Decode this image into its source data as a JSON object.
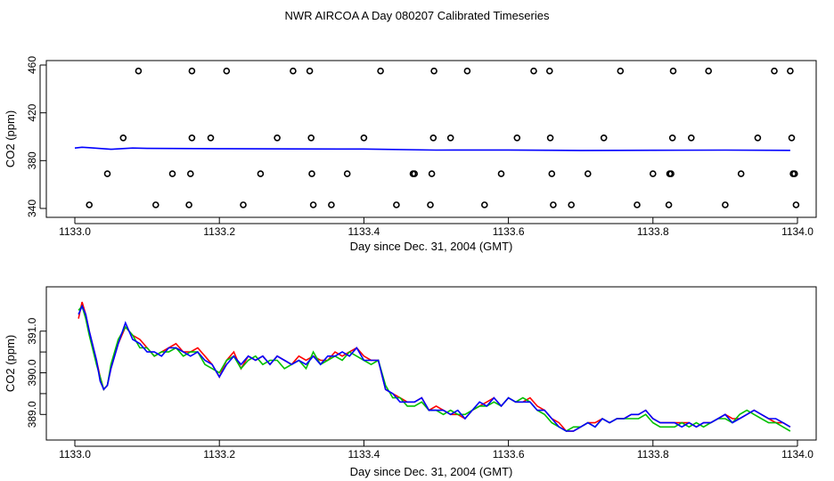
{
  "figure": {
    "title": "NWR AIRCOA A  Day 080207  Calibrated Timeseries"
  },
  "chart_data": [
    {
      "type": "scatter",
      "title": "",
      "xlabel": "Day since Dec. 31, 2004 (GMT)",
      "ylabel": "CO2 (ppm)",
      "xlim": [
        1133.0,
        1134.0
      ],
      "ylim": [
        340,
        460
      ],
      "x_ticks": [
        "1133.0",
        "1133.2",
        "1133.4",
        "1133.6",
        "1133.8",
        "1134.0"
      ],
      "y_ticks": [
        "340",
        "380",
        "420",
        "460"
      ],
      "grid": false,
      "colors": {
        "red": "#ff0000",
        "green": "#00c000",
        "blue": "#0000ff",
        "points": "#000000"
      },
      "points": [
        {
          "x": 1133.02,
          "y": 343
        },
        {
          "x": 1133.045,
          "y": 369
        },
        {
          "x": 1133.067,
          "y": 399
        },
        {
          "x": 1133.088,
          "y": 455
        },
        {
          "x": 1133.112,
          "y": 343
        },
        {
          "x": 1133.135,
          "y": 369
        },
        {
          "x": 1133.158,
          "y": 343
        },
        {
          "x": 1133.16,
          "y": 369
        },
        {
          "x": 1133.162,
          "y": 399
        },
        {
          "x": 1133.162,
          "y": 455
        },
        {
          "x": 1133.188,
          "y": 399
        },
        {
          "x": 1133.21,
          "y": 455
        },
        {
          "x": 1133.233,
          "y": 343
        },
        {
          "x": 1133.257,
          "y": 369
        },
        {
          "x": 1133.28,
          "y": 399
        },
        {
          "x": 1133.302,
          "y": 455
        },
        {
          "x": 1133.325,
          "y": 455
        },
        {
          "x": 1133.327,
          "y": 399
        },
        {
          "x": 1133.328,
          "y": 369
        },
        {
          "x": 1133.33,
          "y": 343
        },
        {
          "x": 1133.355,
          "y": 343
        },
        {
          "x": 1133.377,
          "y": 369
        },
        {
          "x": 1133.4,
          "y": 399
        },
        {
          "x": 1133.423,
          "y": 455
        },
        {
          "x": 1133.445,
          "y": 343
        },
        {
          "x": 1133.468,
          "y": 369
        },
        {
          "x": 1133.47,
          "y": 369
        },
        {
          "x": 1133.492,
          "y": 343
        },
        {
          "x": 1133.494,
          "y": 369
        },
        {
          "x": 1133.496,
          "y": 399
        },
        {
          "x": 1133.497,
          "y": 455
        },
        {
          "x": 1133.52,
          "y": 399
        },
        {
          "x": 1133.543,
          "y": 455
        },
        {
          "x": 1133.567,
          "y": 343
        },
        {
          "x": 1133.59,
          "y": 369
        },
        {
          "x": 1133.612,
          "y": 399
        },
        {
          "x": 1133.635,
          "y": 455
        },
        {
          "x": 1133.657,
          "y": 455
        },
        {
          "x": 1133.658,
          "y": 399
        },
        {
          "x": 1133.66,
          "y": 369
        },
        {
          "x": 1133.662,
          "y": 343
        },
        {
          "x": 1133.687,
          "y": 343
        },
        {
          "x": 1133.71,
          "y": 369
        },
        {
          "x": 1133.732,
          "y": 399
        },
        {
          "x": 1133.755,
          "y": 455
        },
        {
          "x": 1133.778,
          "y": 343
        },
        {
          "x": 1133.8,
          "y": 369
        },
        {
          "x": 1133.822,
          "y": 343
        },
        {
          "x": 1133.823,
          "y": 369
        },
        {
          "x": 1133.825,
          "y": 369
        },
        {
          "x": 1133.827,
          "y": 399
        },
        {
          "x": 1133.828,
          "y": 455
        },
        {
          "x": 1133.853,
          "y": 399
        },
        {
          "x": 1133.877,
          "y": 455
        },
        {
          "x": 1133.9,
          "y": 343
        },
        {
          "x": 1133.922,
          "y": 369
        },
        {
          "x": 1133.945,
          "y": 399
        },
        {
          "x": 1133.968,
          "y": 455
        },
        {
          "x": 1133.99,
          "y": 455
        },
        {
          "x": 1133.992,
          "y": 399
        },
        {
          "x": 1133.994,
          "y": 369
        },
        {
          "x": 1133.996,
          "y": 369
        },
        {
          "x": 1133.998,
          "y": 343
        }
      ],
      "series": [
        {
          "color": "blue",
          "x": [
            1133.0,
            1133.01,
            1133.02,
            1133.05,
            1133.08,
            1133.1,
            1133.2,
            1133.3,
            1133.4,
            1133.5,
            1133.6,
            1133.7,
            1133.8,
            1133.9,
            1133.99
          ],
          "values": [
            390.5,
            391.2,
            390.8,
            389.5,
            390.5,
            390.2,
            390.0,
            389.8,
            389.7,
            388.8,
            388.9,
            388.5,
            388.7,
            388.8,
            388.6
          ]
        }
      ]
    },
    {
      "type": "line",
      "title": "",
      "xlabel": "Day since Dec. 31, 2004 (GMT)",
      "ylabel": "CO2 (ppm)",
      "xlim": [
        1133.0,
        1134.0
      ],
      "ylim": [
        388.6,
        391.85
      ],
      "x_ticks": [
        "1133.0",
        "1133.2",
        "1133.4",
        "1133.6",
        "1133.8",
        "1134.0"
      ],
      "y_ticks": [
        "389.0",
        "390.0",
        "391.0"
      ],
      "y_minor_ticks": [
        389.5,
        390.5
      ],
      "grid": false,
      "colors": {
        "red": "#ff0000",
        "green": "#00c000",
        "blue": "#0000ff"
      },
      "x": [
        1133.005,
        1133.01,
        1133.015,
        1133.02,
        1133.03,
        1133.035,
        1133.04,
        1133.045,
        1133.05,
        1133.06,
        1133.07,
        1133.08,
        1133.09,
        1133.1,
        1133.11,
        1133.12,
        1133.13,
        1133.14,
        1133.15,
        1133.16,
        1133.17,
        1133.18,
        1133.19,
        1133.2,
        1133.21,
        1133.22,
        1133.23,
        1133.24,
        1133.25,
        1133.26,
        1133.27,
        1133.28,
        1133.29,
        1133.3,
        1133.31,
        1133.32,
        1133.33,
        1133.34,
        1133.35,
        1133.36,
        1133.37,
        1133.38,
        1133.39,
        1133.4,
        1133.41,
        1133.42,
        1133.43,
        1133.44,
        1133.45,
        1133.46,
        1133.47,
        1133.48,
        1133.49,
        1133.5,
        1133.51,
        1133.52,
        1133.53,
        1133.54,
        1133.55,
        1133.56,
        1133.57,
        1133.58,
        1133.59,
        1133.6,
        1133.61,
        1133.62,
        1133.63,
        1133.64,
        1133.65,
        1133.66,
        1133.67,
        1133.68,
        1133.69,
        1133.7,
        1133.71,
        1133.72,
        1133.73,
        1133.74,
        1133.75,
        1133.76,
        1133.77,
        1133.78,
        1133.79,
        1133.8,
        1133.81,
        1133.82,
        1133.83,
        1133.84,
        1133.85,
        1133.86,
        1133.87,
        1133.88,
        1133.89,
        1133.9,
        1133.91,
        1133.92,
        1133.93,
        1133.94,
        1133.95,
        1133.96,
        1133.97,
        1133.98,
        1133.99
      ],
      "series": [
        {
          "color": "red",
          "values": [
            391.3,
            391.7,
            391.4,
            391.0,
            390.3,
            389.9,
            389.6,
            389.7,
            390.1,
            390.7,
            391.1,
            390.9,
            390.8,
            390.6,
            390.4,
            390.5,
            390.6,
            390.7,
            390.5,
            390.5,
            390.6,
            390.4,
            390.2,
            389.9,
            390.3,
            390.5,
            390.1,
            390.4,
            390.3,
            390.4,
            390.2,
            390.4,
            390.3,
            390.2,
            390.4,
            390.3,
            390.4,
            390.3,
            390.3,
            390.5,
            390.4,
            390.5,
            390.6,
            390.4,
            390.3,
            390.3,
            389.6,
            389.5,
            389.4,
            389.3,
            389.3,
            389.4,
            389.1,
            389.2,
            389.1,
            389.0,
            389.0,
            388.9,
            389.1,
            389.2,
            389.3,
            389.4,
            389.2,
            389.4,
            389.3,
            389.3,
            389.4,
            389.2,
            389.1,
            388.9,
            388.8,
            388.6,
            388.6,
            388.7,
            388.8,
            388.8,
            388.9,
            388.8,
            388.9,
            388.9,
            389.0,
            389.0,
            389.1,
            388.9,
            388.8,
            388.8,
            388.8,
            388.8,
            388.8,
            388.7,
            388.8,
            388.8,
            388.9,
            389.0,
            388.9,
            388.9,
            389.0,
            389.1,
            389.0,
            388.9,
            388.8,
            388.8,
            388.7
          ]
        },
        {
          "color": "green",
          "values": [
            391.5,
            391.6,
            391.3,
            390.9,
            390.2,
            389.9,
            389.6,
            389.7,
            390.2,
            390.8,
            391.1,
            390.9,
            390.6,
            390.6,
            390.4,
            390.5,
            390.5,
            390.6,
            390.4,
            390.5,
            390.5,
            390.2,
            390.1,
            390.0,
            390.3,
            390.4,
            390.1,
            390.3,
            390.4,
            390.2,
            390.3,
            390.3,
            390.1,
            390.2,
            390.3,
            390.1,
            390.5,
            390.2,
            390.3,
            390.4,
            390.3,
            390.5,
            390.4,
            390.3,
            390.2,
            390.3,
            389.7,
            389.4,
            389.4,
            389.2,
            389.2,
            389.3,
            389.1,
            389.1,
            389.0,
            389.1,
            389.0,
            389.0,
            389.1,
            389.2,
            389.2,
            389.3,
            389.2,
            389.4,
            389.3,
            389.4,
            389.3,
            389.1,
            389.0,
            388.8,
            388.7,
            388.6,
            388.7,
            388.7,
            388.8,
            388.7,
            388.9,
            388.8,
            388.9,
            388.9,
            388.9,
            388.9,
            389.0,
            388.8,
            388.7,
            388.7,
            388.7,
            388.8,
            388.7,
            388.8,
            388.7,
            388.8,
            388.9,
            388.9,
            388.8,
            389.0,
            389.1,
            389.0,
            388.9,
            388.8,
            388.8,
            388.7,
            388.6
          ]
        },
        {
          "color": "blue",
          "values": [
            391.4,
            391.6,
            391.4,
            391.0,
            390.3,
            389.8,
            389.6,
            389.7,
            390.1,
            390.7,
            391.2,
            390.8,
            390.7,
            390.5,
            390.5,
            390.4,
            390.6,
            390.6,
            390.5,
            390.4,
            390.5,
            390.3,
            390.2,
            389.9,
            390.2,
            390.4,
            390.2,
            390.4,
            390.3,
            390.4,
            390.2,
            390.4,
            390.3,
            390.2,
            390.3,
            390.2,
            390.4,
            390.2,
            390.4,
            390.4,
            390.5,
            390.4,
            390.6,
            390.3,
            390.3,
            390.3,
            389.6,
            389.5,
            389.3,
            389.3,
            389.3,
            389.4,
            389.1,
            389.1,
            389.1,
            389.0,
            389.1,
            388.9,
            389.1,
            389.3,
            389.2,
            389.4,
            389.2,
            389.4,
            389.3,
            389.3,
            389.3,
            389.1,
            389.1,
            388.9,
            388.7,
            388.6,
            388.6,
            388.7,
            388.8,
            388.7,
            388.9,
            388.8,
            388.9,
            388.9,
            389.0,
            389.0,
            389.1,
            388.9,
            388.8,
            388.8,
            388.8,
            388.7,
            388.8,
            388.7,
            388.8,
            388.8,
            388.9,
            389.0,
            388.8,
            388.9,
            389.0,
            389.1,
            389.0,
            388.9,
            388.9,
            388.8,
            388.7
          ]
        }
      ]
    }
  ]
}
